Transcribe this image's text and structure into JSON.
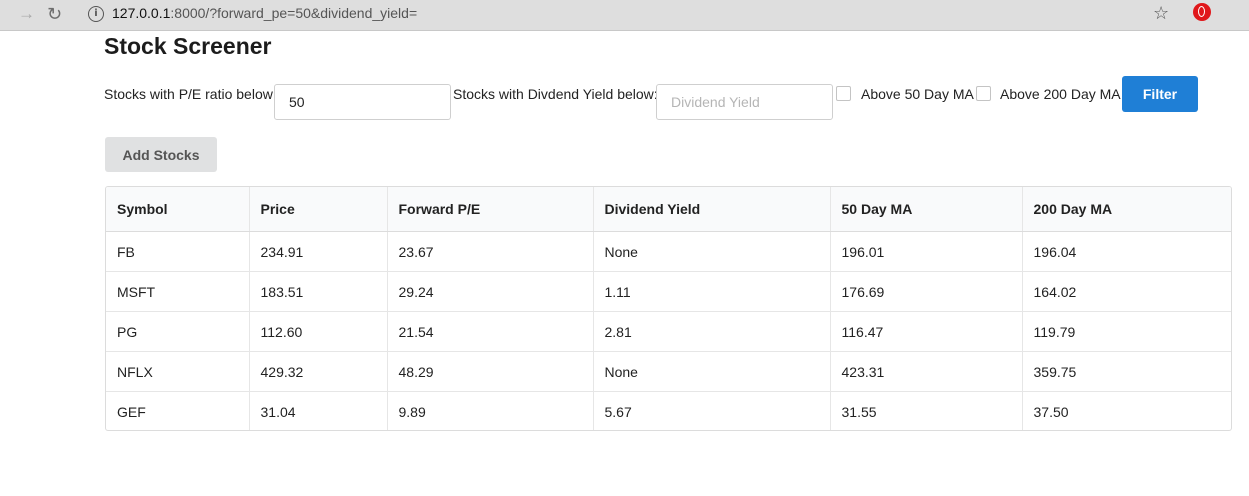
{
  "browser": {
    "url_host": "127.0.0.1",
    "url_path": ":8000/?forward_pe=50&dividend_yield="
  },
  "page": {
    "title": "Stock Screener"
  },
  "filters": {
    "pe_label": "Stocks with P/E ratio below:",
    "pe_value": "50",
    "dividend_label": "Stocks with Divdend Yield below:",
    "dividend_value": "",
    "dividend_placeholder": "Dividend Yield",
    "ma50_label": "Above 50 Day MA",
    "ma200_label": "Above 200 Day MA",
    "filter_button": "Filter",
    "add_button": "Add Stocks"
  },
  "table": {
    "headers": [
      "Symbol",
      "Price",
      "Forward P/E",
      "Dividend Yield",
      "50 Day MA",
      "200 Day MA"
    ],
    "rows": [
      [
        "FB",
        "234.91",
        "23.67",
        "None",
        "196.01",
        "196.04"
      ],
      [
        "MSFT",
        "183.51",
        "29.24",
        "1.11",
        "176.69",
        "164.02"
      ],
      [
        "PG",
        "112.60",
        "21.54",
        "2.81",
        "116.47",
        "119.79"
      ],
      [
        "NFLX",
        "429.32",
        "48.29",
        "None",
        "423.31",
        "359.75"
      ],
      [
        "GEF",
        "31.04",
        "9.89",
        "5.67",
        "31.55",
        "37.50"
      ]
    ]
  },
  "colors": {
    "accent": "#1f7fd6",
    "secondary_button": "#e0e1e2"
  }
}
